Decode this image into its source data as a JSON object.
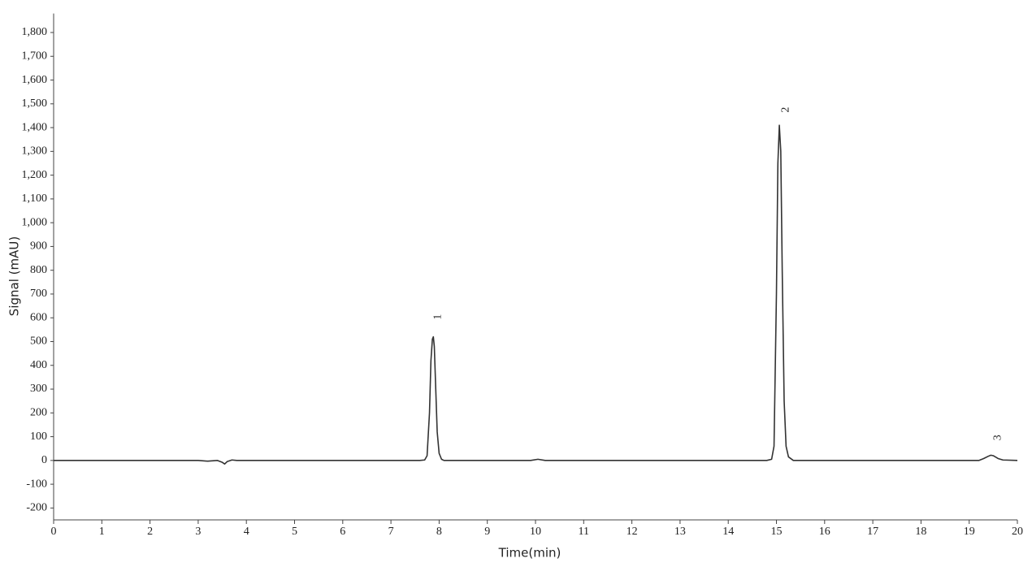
{
  "chart_data": {
    "type": "line",
    "x_label": "Time(min)",
    "y_label": "Signal (mAU)",
    "x": [
      0,
      3.0,
      3.2,
      3.4,
      3.5,
      3.55,
      3.6,
      3.7,
      3.8,
      7.6,
      7.7,
      7.75,
      7.8,
      7.83,
      7.86,
      7.88,
      7.9,
      7.93,
      7.96,
      8.0,
      8.05,
      8.1,
      9.9,
      10.05,
      10.2,
      14.8,
      14.9,
      14.95,
      15.0,
      15.03,
      15.06,
      15.09,
      15.12,
      15.16,
      15.2,
      15.25,
      15.35,
      19.2,
      19.3,
      19.4,
      19.45,
      19.5,
      19.6,
      19.7,
      20
    ],
    "series": [
      {
        "color": "#333333",
        "values": [
          0,
          0,
          -3,
          0,
          -8,
          -15,
          -5,
          2,
          0,
          0,
          2,
          20,
          200,
          420,
          510,
          520,
          480,
          300,
          120,
          30,
          5,
          0,
          0,
          5,
          0,
          0,
          5,
          60,
          700,
          1250,
          1410,
          1300,
          800,
          250,
          60,
          15,
          0,
          0,
          8,
          18,
          22,
          20,
          8,
          2,
          0
        ]
      }
    ],
    "peak_labels": [
      {
        "label": "1",
        "x": 7.98,
        "y": 604
      },
      {
        "label": "2",
        "x": 15.2,
        "y": 1475
      },
      {
        "label": "3",
        "x": 19.6,
        "y": 96
      }
    ],
    "xlim": [
      0,
      20
    ],
    "ylim": [
      -250,
      1880
    ],
    "xticks": [
      0,
      1,
      2,
      3,
      4,
      5,
      6,
      7,
      8,
      9,
      10,
      11,
      12,
      13,
      14,
      15,
      16,
      17,
      18,
      19,
      20
    ],
    "yticks": [
      -200,
      -100,
      0,
      100,
      200,
      300,
      400,
      500,
      600,
      700,
      800,
      900,
      {
        "value": 1000,
        "label": "1,000"
      },
      {
        "value": 1100,
        "label": "1,100"
      },
      {
        "value": 1200,
        "label": "1,200"
      },
      {
        "value": 1300,
        "label": "1,300"
      },
      {
        "value": 1400,
        "label": "1,400"
      },
      {
        "value": 1500,
        "label": "1,500"
      },
      {
        "value": 1600,
        "label": "1,600"
      },
      {
        "value": 1700,
        "label": "1,700"
      },
      {
        "value": 1800,
        "label": "1,800"
      }
    ]
  }
}
